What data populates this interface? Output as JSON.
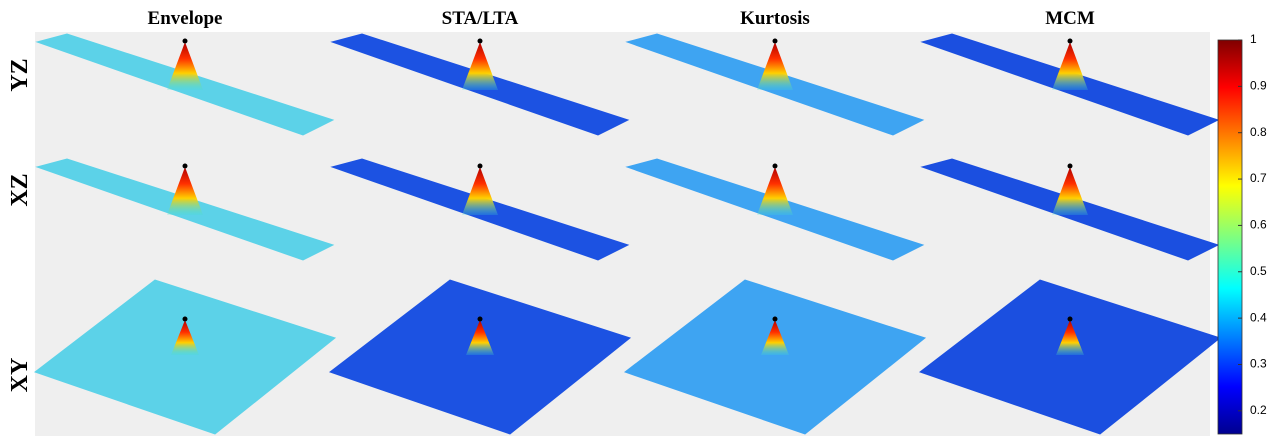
{
  "columns": [
    "Envelope",
    "STA/LTA",
    "Kurtosis",
    "MCM"
  ],
  "rows": [
    "YZ",
    "XZ",
    "XY"
  ],
  "colorbar": {
    "lim": [
      0.15,
      1
    ],
    "ticks": [
      0.2,
      0.3,
      0.4,
      0.5,
      0.6,
      0.7,
      0.8,
      0.9,
      1
    ]
  }
}
